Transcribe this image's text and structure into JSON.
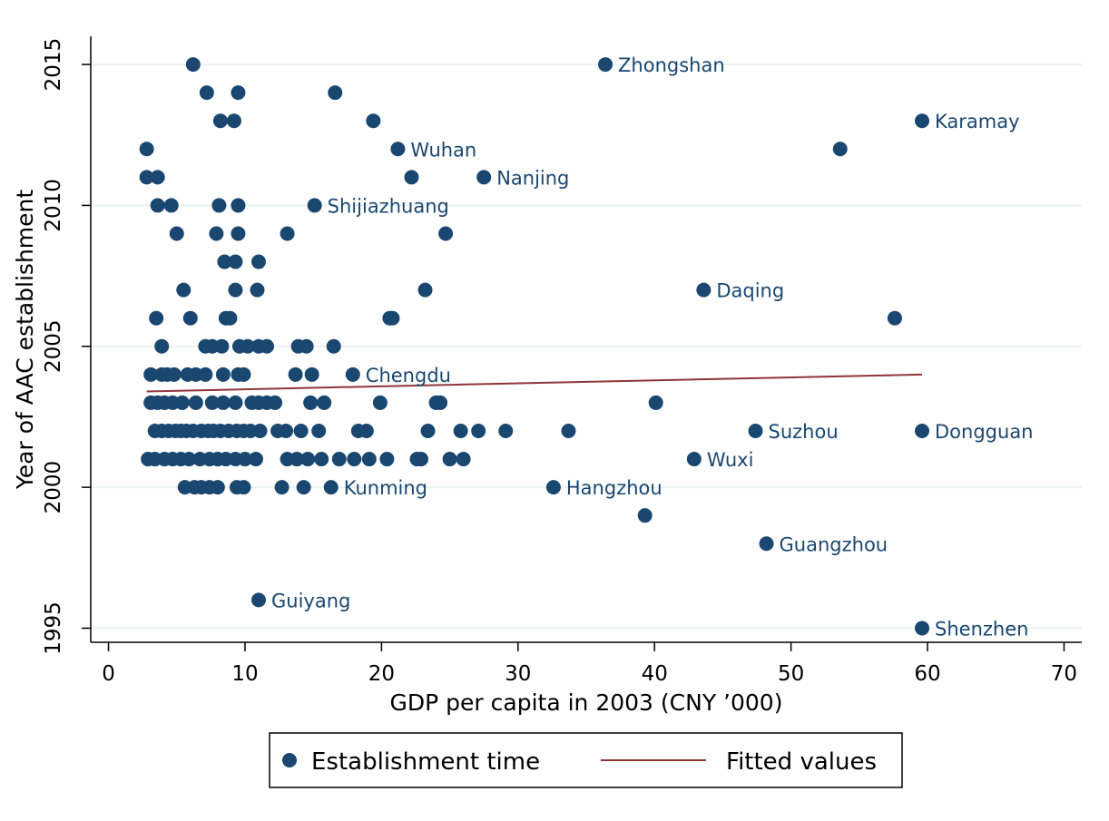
{
  "chart_data": {
    "type": "scatter",
    "xlabel": "GDP per capita in 2003 (CNY ’000)",
    "ylabel": "Year of AAC establishment",
    "xlim": [
      -1.3,
      71.3
    ],
    "ylim": [
      1994.5,
      2016.0
    ],
    "x_ticks": [
      0,
      10,
      20,
      30,
      40,
      50,
      60,
      70
    ],
    "y_ticks": [
      1995,
      2000,
      2005,
      2010,
      2015
    ],
    "grid": "horizontal",
    "colors": {
      "points": "#1a476f",
      "fit": "#90353b",
      "grid": "#eaf2f3"
    },
    "legend": {
      "position": "bottom",
      "items": [
        {
          "label": "Establishment time",
          "marker": "dot"
        },
        {
          "label": "Fitted values",
          "marker": "line"
        }
      ]
    },
    "fitted_line": {
      "x": [
        2.8,
        59.6
      ],
      "y": [
        2003.4,
        2004.0
      ]
    },
    "labeled_points": [
      {
        "name": "Zhongshan",
        "x": 36.4,
        "y": 2015
      },
      {
        "name": "Karamay",
        "x": 59.6,
        "y": 2013
      },
      {
        "name": "Wuhan",
        "x": 21.2,
        "y": 2012
      },
      {
        "name": "Nanjing",
        "x": 27.5,
        "y": 2011
      },
      {
        "name": "Shijiazhuang",
        "x": 15.1,
        "y": 2010
      },
      {
        "name": "Daqing",
        "x": 43.6,
        "y": 2007
      },
      {
        "name": "Chengdu",
        "x": 17.9,
        "y": 2004
      },
      {
        "name": "Suzhou",
        "x": 47.4,
        "y": 2002
      },
      {
        "name": "Dongguan",
        "x": 59.6,
        "y": 2002
      },
      {
        "name": "Wuxi",
        "x": 42.9,
        "y": 2001
      },
      {
        "name": "Kunming",
        "x": 16.3,
        "y": 2000
      },
      {
        "name": "Hangzhou",
        "x": 32.6,
        "y": 2000
      },
      {
        "name": "Guangzhou",
        "x": 48.2,
        "y": 1998
      },
      {
        "name": "Guiyang",
        "x": 11.0,
        "y": 1996
      },
      {
        "name": "Shenzhen",
        "x": 59.6,
        "y": 1995
      }
    ],
    "points": [
      [
        6.2,
        2015
      ],
      [
        7.2,
        2014
      ],
      [
        9.5,
        2014
      ],
      [
        16.6,
        2014
      ],
      [
        8.2,
        2013
      ],
      [
        9.2,
        2013
      ],
      [
        19.4,
        2013
      ],
      [
        2.8,
        2012
      ],
      [
        53.6,
        2012
      ],
      [
        2.8,
        2011
      ],
      [
        3.6,
        2011
      ],
      [
        22.2,
        2011
      ],
      [
        3.6,
        2010
      ],
      [
        4.6,
        2010
      ],
      [
        8.1,
        2010
      ],
      [
        9.5,
        2010
      ],
      [
        5.0,
        2009
      ],
      [
        7.9,
        2009
      ],
      [
        9.5,
        2009
      ],
      [
        13.1,
        2009
      ],
      [
        24.7,
        2009
      ],
      [
        8.5,
        2008
      ],
      [
        9.3,
        2008
      ],
      [
        11.0,
        2008
      ],
      [
        5.5,
        2007
      ],
      [
        9.3,
        2007
      ],
      [
        10.9,
        2007
      ],
      [
        23.2,
        2007
      ],
      [
        3.5,
        2006
      ],
      [
        6.0,
        2006
      ],
      [
        8.6,
        2006
      ],
      [
        8.9,
        2006
      ],
      [
        20.6,
        2006
      ],
      [
        20.8,
        2006
      ],
      [
        57.6,
        2006
      ],
      [
        3.9,
        2005
      ],
      [
        7.1,
        2005
      ],
      [
        7.6,
        2005
      ],
      [
        8.3,
        2005
      ],
      [
        9.6,
        2005
      ],
      [
        10.2,
        2005
      ],
      [
        11.0,
        2005
      ],
      [
        11.6,
        2005
      ],
      [
        13.9,
        2005
      ],
      [
        14.5,
        2005
      ],
      [
        16.5,
        2005
      ],
      [
        3.1,
        2004
      ],
      [
        3.9,
        2004
      ],
      [
        4.3,
        2004
      ],
      [
        4.8,
        2004
      ],
      [
        5.8,
        2004
      ],
      [
        6.4,
        2004
      ],
      [
        7.1,
        2004
      ],
      [
        8.4,
        2004
      ],
      [
        9.5,
        2004
      ],
      [
        9.9,
        2004
      ],
      [
        13.7,
        2004
      ],
      [
        14.9,
        2004
      ],
      [
        3.1,
        2003
      ],
      [
        3.6,
        2003
      ],
      [
        4.1,
        2003
      ],
      [
        4.7,
        2003
      ],
      [
        5.4,
        2003
      ],
      [
        6.4,
        2003
      ],
      [
        7.6,
        2003
      ],
      [
        8.4,
        2003
      ],
      [
        9.3,
        2003
      ],
      [
        10.5,
        2003
      ],
      [
        11.0,
        2003
      ],
      [
        11.6,
        2003
      ],
      [
        12.2,
        2003
      ],
      [
        14.8,
        2003
      ],
      [
        15.8,
        2003
      ],
      [
        19.9,
        2003
      ],
      [
        24.0,
        2003
      ],
      [
        24.3,
        2003
      ],
      [
        40.1,
        2003
      ],
      [
        3.4,
        2002
      ],
      [
        3.9,
        2002
      ],
      [
        4.4,
        2002
      ],
      [
        4.9,
        2002
      ],
      [
        5.3,
        2002
      ],
      [
        5.7,
        2002
      ],
      [
        6.2,
        2002
      ],
      [
        6.8,
        2002
      ],
      [
        7.3,
        2002
      ],
      [
        7.7,
        2002
      ],
      [
        8.2,
        2002
      ],
      [
        8.8,
        2002
      ],
      [
        9.4,
        2002
      ],
      [
        9.9,
        2002
      ],
      [
        10.4,
        2002
      ],
      [
        11.1,
        2002
      ],
      [
        12.4,
        2002
      ],
      [
        13.0,
        2002
      ],
      [
        14.1,
        2002
      ],
      [
        15.4,
        2002
      ],
      [
        18.3,
        2002
      ],
      [
        18.9,
        2002
      ],
      [
        23.4,
        2002
      ],
      [
        25.8,
        2002
      ],
      [
        27.1,
        2002
      ],
      [
        29.1,
        2002
      ],
      [
        33.7,
        2002
      ],
      [
        2.9,
        2001
      ],
      [
        3.4,
        2001
      ],
      [
        4.1,
        2001
      ],
      [
        4.7,
        2001
      ],
      [
        5.3,
        2001
      ],
      [
        5.9,
        2001
      ],
      [
        6.7,
        2001
      ],
      [
        7.4,
        2001
      ],
      [
        8.0,
        2001
      ],
      [
        8.6,
        2001
      ],
      [
        9.3,
        2001
      ],
      [
        10.0,
        2001
      ],
      [
        10.8,
        2001
      ],
      [
        13.1,
        2001
      ],
      [
        13.8,
        2001
      ],
      [
        14.6,
        2001
      ],
      [
        15.6,
        2001
      ],
      [
        16.9,
        2001
      ],
      [
        18.0,
        2001
      ],
      [
        19.1,
        2001
      ],
      [
        20.4,
        2001
      ],
      [
        22.6,
        2001
      ],
      [
        22.9,
        2001
      ],
      [
        25.0,
        2001
      ],
      [
        26.0,
        2001
      ],
      [
        5.6,
        2000
      ],
      [
        6.3,
        2000
      ],
      [
        6.8,
        2000
      ],
      [
        7.4,
        2000
      ],
      [
        8.0,
        2000
      ],
      [
        9.4,
        2000
      ],
      [
        9.9,
        2000
      ],
      [
        12.7,
        2000
      ],
      [
        14.3,
        2000
      ],
      [
        39.3,
        1999
      ]
    ]
  }
}
